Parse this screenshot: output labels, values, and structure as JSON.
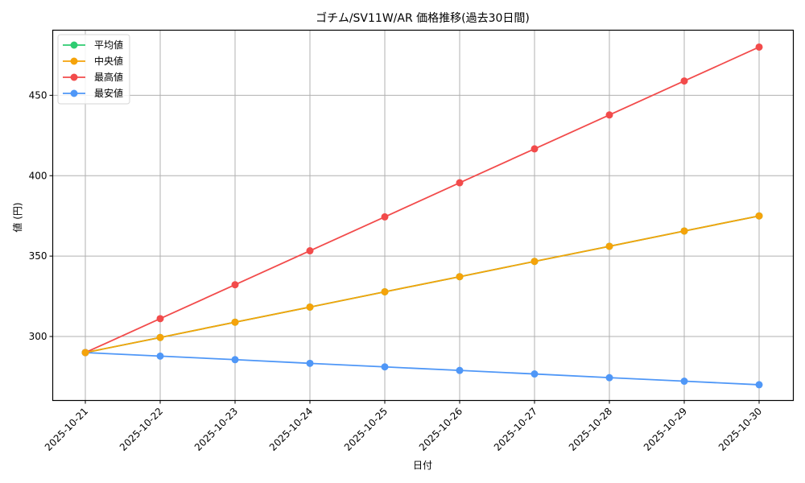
{
  "chart_data": {
    "type": "line",
    "title": "ゴチム/SV11W/AR 価格推移(過去30日間)",
    "xlabel": "日付",
    "ylabel": "値 (円)",
    "categories": [
      "2025-10-21",
      "2025-10-22",
      "2025-10-23",
      "2025-10-24",
      "2025-10-25",
      "2025-10-26",
      "2025-10-27",
      "2025-10-28",
      "2025-10-29",
      "2025-10-30"
    ],
    "series": [
      {
        "name": "平均値",
        "color": "#2ecc71",
        "values": [
          290,
          299.4,
          308.9,
          318.3,
          327.8,
          337.2,
          346.7,
          356.1,
          365.6,
          375
        ]
      },
      {
        "name": "中央値",
        "color": "#f5a30a",
        "values": [
          290,
          299.4,
          308.9,
          318.3,
          327.8,
          337.2,
          346.7,
          356.1,
          365.6,
          375
        ]
      },
      {
        "name": "最高値",
        "color": "#f24b4b",
        "values": [
          290,
          311.1,
          332.2,
          353.3,
          374.4,
          395.6,
          416.7,
          437.8,
          458.9,
          480
        ]
      },
      {
        "name": "最安値",
        "color": "#4f97f7",
        "values": [
          290,
          287.8,
          285.6,
          283.3,
          281.1,
          278.9,
          276.7,
          274.4,
          272.2,
          270
        ]
      }
    ],
    "yticks": [
      300,
      350,
      400,
      450
    ],
    "ylim": [
      260.2,
      490.5
    ],
    "grid": true,
    "legend_position": "upper left"
  }
}
